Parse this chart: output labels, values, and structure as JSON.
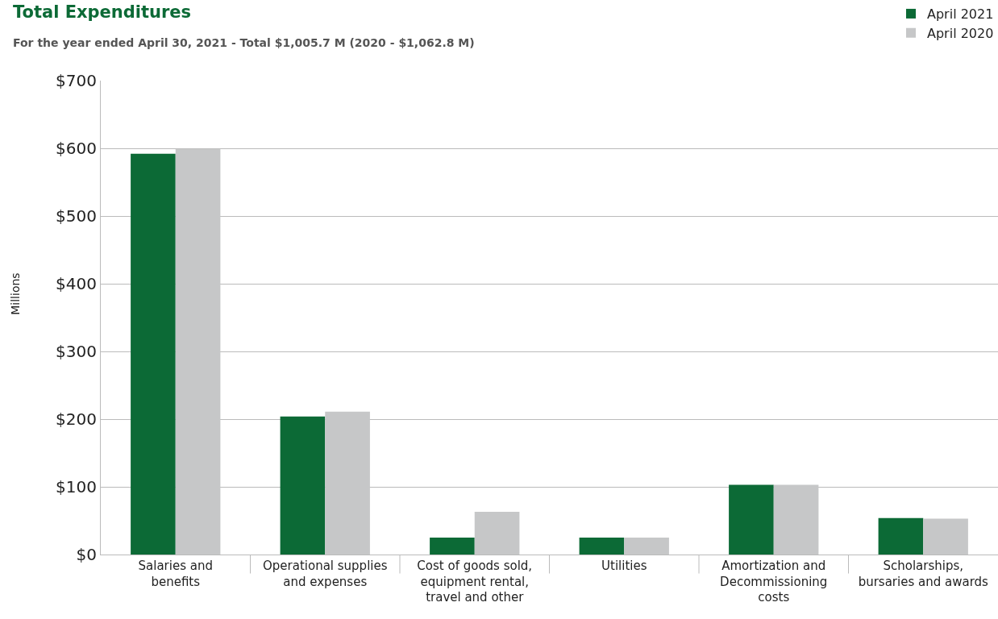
{
  "chart_data": {
    "type": "bar",
    "title": "Total Expenditures",
    "subtitle": "For the year ended April 30, 2021 - Total $1,005.7 M (2020 - $1,062.8 M)",
    "ylabel": "Millions",
    "categories": [
      "Salaries and benefits",
      "Operational supplies and expenses",
      "Cost of goods sold, equipment rental, travel and other",
      "Utilities",
      "Amortization and Decommissioning costs",
      "Scholarships, bursaries and awards"
    ],
    "series": [
      {
        "name": "April 2021",
        "color": "#0c6a36",
        "values": [
          592,
          204,
          25,
          25,
          103,
          54
        ]
      },
      {
        "name": "April 2020",
        "color": "#c6c7c8",
        "values": [
          599,
          211,
          63,
          25,
          103,
          53
        ]
      }
    ],
    "ylim": [
      0,
      700
    ],
    "yticks": [
      {
        "value": 0,
        "label": "$0"
      },
      {
        "value": 100,
        "label": "$100"
      },
      {
        "value": 200,
        "label": "$200"
      },
      {
        "value": 300,
        "label": "$300"
      },
      {
        "value": 400,
        "label": "$400"
      },
      {
        "value": 500,
        "label": "$500"
      },
      {
        "value": 600,
        "label": "$600"
      },
      {
        "value": 700,
        "label": "$700"
      }
    ],
    "grid": "y",
    "legend": "top right"
  }
}
